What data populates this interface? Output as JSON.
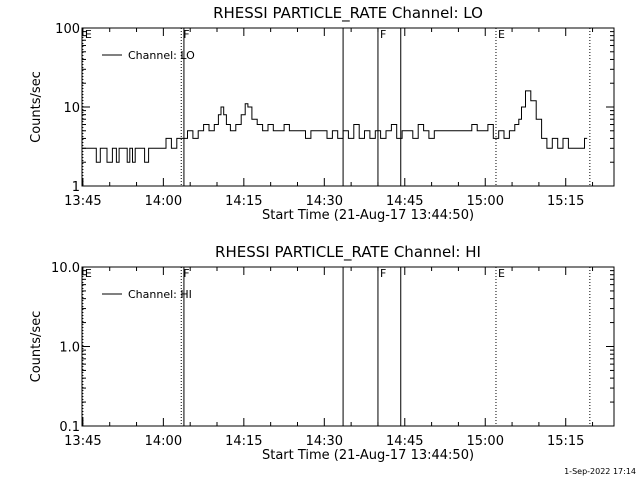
{
  "footer": {
    "date_stamp": "1-Sep-2022 17:14"
  },
  "chart_data": [
    {
      "type": "line",
      "title": "RHESSI PARTICLE_RATE Channel: LO",
      "xlabel": "Start Time (21-Aug-17 13:44:50)",
      "ylabel": "Counts/sec",
      "yscale": "log",
      "ylim": [
        1,
        100
      ],
      "yticks": [
        "1",
        "10",
        "100"
      ],
      "xlim": [
        "13:44:50",
        "15:24:00"
      ],
      "xticks": [
        "13:45",
        "14:00",
        "14:15",
        "14:30",
        "14:45",
        "15:00",
        "15:15"
      ],
      "legend": {
        "position": "top-left",
        "entries": [
          "Channel: LO"
        ]
      },
      "grid": false,
      "markers": [
        {
          "time": "13:45:00",
          "label": "E",
          "style": "dotted"
        },
        {
          "time": "14:03:20",
          "label": "F",
          "style": "dotted"
        },
        {
          "time": "14:03:50",
          "label": "",
          "style": "solid"
        },
        {
          "time": "14:33:30",
          "label": "",
          "style": "solid"
        },
        {
          "time": "14:40:00",
          "label": "F",
          "style": "solid"
        },
        {
          "time": "14:44:15",
          "label": "",
          "style": "solid"
        },
        {
          "time": "15:02:00",
          "label": "E",
          "style": "dotted"
        },
        {
          "time": "15:19:30",
          "label": "",
          "style": "dotted"
        }
      ],
      "series": [
        {
          "name": "Channel: LO",
          "x": [
            "13:45:00",
            "13:47:00",
            "13:48:00",
            "13:48:30",
            "13:49:00",
            "13:50:00",
            "13:51:00",
            "13:51:30",
            "13:52:00",
            "13:53:00",
            "13:53:30",
            "13:54:00",
            "13:54:30",
            "13:55:00",
            "13:56:00",
            "13:57:00",
            "13:57:30",
            "13:58:00",
            "13:59:00",
            "14:00:00",
            "14:01:00",
            "14:02:00",
            "14:03:00",
            "14:03:30",
            "14:04:00",
            "14:05:00",
            "14:06:00",
            "14:07:00",
            "14:08:00",
            "14:09:00",
            "14:10:00",
            "14:10:30",
            "14:11:00",
            "14:11:30",
            "14:12:00",
            "14:13:00",
            "14:14:00",
            "14:15:00",
            "14:15:30",
            "14:16:00",
            "14:17:00",
            "14:18:00",
            "14:19:00",
            "14:20:00",
            "14:21:00",
            "14:22:00",
            "14:23:00",
            "14:24:00",
            "14:25:00",
            "14:26:00",
            "14:27:00",
            "14:28:00",
            "14:29:00",
            "14:30:00",
            "14:31:00",
            "14:32:00",
            "14:33:00",
            "14:34:00",
            "14:35:00",
            "14:36:00",
            "14:37:00",
            "14:38:00",
            "14:39:00",
            "14:40:00",
            "14:41:00",
            "14:42:00",
            "14:43:00",
            "14:44:00",
            "14:45:00",
            "14:46:00",
            "14:47:00",
            "14:48:00",
            "14:49:00",
            "14:50:00",
            "14:51:00",
            "14:52:00",
            "14:53:00",
            "14:54:00",
            "14:55:00",
            "14:56:00",
            "14:57:00",
            "14:58:00",
            "14:59:00",
            "15:00:00",
            "15:01:00",
            "15:02:00",
            "15:03:00",
            "15:04:00",
            "15:05:00",
            "15:06:00",
            "15:06:30",
            "15:07:00",
            "15:08:00",
            "15:09:00",
            "15:10:00",
            "15:11:00",
            "15:12:00",
            "15:13:00",
            "15:14:00",
            "15:15:00",
            "15:16:00",
            "15:17:00",
            "15:18:00",
            "15:19:00"
          ],
          "y": [
            3,
            3,
            2,
            3,
            3,
            2,
            3,
            2,
            3,
            3,
            2,
            3,
            2,
            3,
            3,
            2,
            3,
            3,
            3,
            3,
            4,
            3,
            4,
            4,
            4,
            5,
            4,
            5,
            6,
            5,
            6,
            8,
            10,
            8,
            6,
            5,
            6,
            8,
            11,
            10,
            7,
            6,
            5,
            6,
            5,
            5,
            6,
            5,
            5,
            5,
            4,
            5,
            5,
            5,
            4,
            5,
            4,
            5,
            4,
            6,
            4,
            5,
            4,
            5,
            4,
            5,
            6,
            4,
            5,
            5,
            4,
            6,
            5,
            4,
            5,
            5,
            5,
            5,
            5,
            5,
            5,
            6,
            5,
            5,
            6,
            4,
            5,
            4,
            5,
            6,
            7,
            10,
            16,
            12,
            7,
            4,
            3,
            4,
            3,
            4,
            3,
            3,
            3,
            4
          ]
        }
      ]
    },
    {
      "type": "line",
      "title": "RHESSI PARTICLE_RATE Channel: HI",
      "xlabel": "Start Time (21-Aug-17 13:44:50)",
      "ylabel": "Counts/sec",
      "yscale": "log",
      "ylim": [
        0.1,
        10
      ],
      "yticks": [
        "0.1",
        "1.0",
        "10.0"
      ],
      "xlim": [
        "13:44:50",
        "15:24:00"
      ],
      "xticks": [
        "13:45",
        "14:00",
        "14:15",
        "14:30",
        "14:45",
        "15:00",
        "15:15"
      ],
      "legend": {
        "position": "top-left",
        "entries": [
          "Channel: HI"
        ]
      },
      "grid": false,
      "markers": [
        {
          "time": "13:45:00",
          "label": "E",
          "style": "dotted"
        },
        {
          "time": "14:03:20",
          "label": "F",
          "style": "dotted"
        },
        {
          "time": "14:03:50",
          "label": "",
          "style": "solid"
        },
        {
          "time": "14:33:30",
          "label": "",
          "style": "solid"
        },
        {
          "time": "14:40:00",
          "label": "F",
          "style": "solid"
        },
        {
          "time": "14:44:15",
          "label": "",
          "style": "solid"
        },
        {
          "time": "15:02:00",
          "label": "E",
          "style": "dotted"
        },
        {
          "time": "15:19:30",
          "label": "",
          "style": "dotted"
        }
      ],
      "series": [
        {
          "name": "Channel: HI",
          "x": [],
          "y": []
        }
      ]
    }
  ]
}
